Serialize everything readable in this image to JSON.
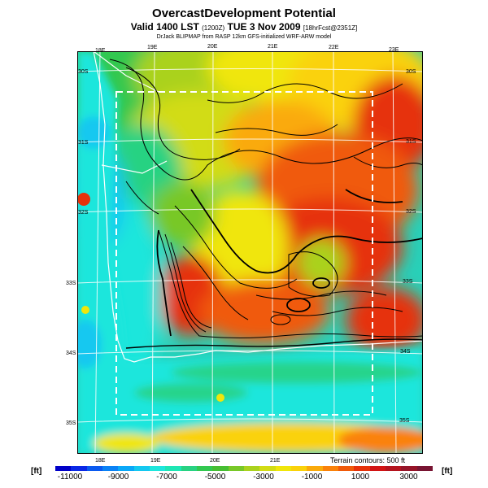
{
  "title": "OvercastDevelopment Potential",
  "valid": {
    "main": "Valid 1400 LST",
    "code": "(1200Z)",
    "date": "TUE 3 Nov 2009",
    "fcst": "[18hrFcst@2351Z]"
  },
  "subtitle": "DrJack BLIPMAP from RASP 12km GFS-initialized WRF-ARW model",
  "top_lon_labels": [
    "18E",
    "19E",
    "20E",
    "21E",
    "22E",
    "23E"
  ],
  "bottom_lon_labels": [
    "18E",
    "19E",
    "20E",
    "21E"
  ],
  "right_lat_labels": [
    "30S",
    "31S",
    "32S",
    "33S",
    "34S",
    "35S"
  ],
  "left_lat_labels": [
    "30S",
    "31S",
    "32S",
    "33S",
    "34S",
    "35S"
  ],
  "terrain_note": "Terrain contours: 500 ft",
  "colorbar": {
    "unit": "[ft]",
    "tick_labels": [
      "-11000",
      "-9000",
      "-7000",
      "-5000",
      "-3000",
      "-1000",
      "1000",
      "3000"
    ],
    "colors": [
      "#0000c8",
      "#0a28e6",
      "#0a5af0",
      "#0a82f5",
      "#0aa8f8",
      "#14c8f0",
      "#1ee6dc",
      "#1ee6b4",
      "#28d282",
      "#32c850",
      "#46be32",
      "#78c828",
      "#aad21e",
      "#d2dc14",
      "#f0e60a",
      "#fad20a",
      "#faaa0a",
      "#fa820a",
      "#f05a0a",
      "#e6320a",
      "#d21414",
      "#b4141e",
      "#961428",
      "#781432"
    ]
  }
}
